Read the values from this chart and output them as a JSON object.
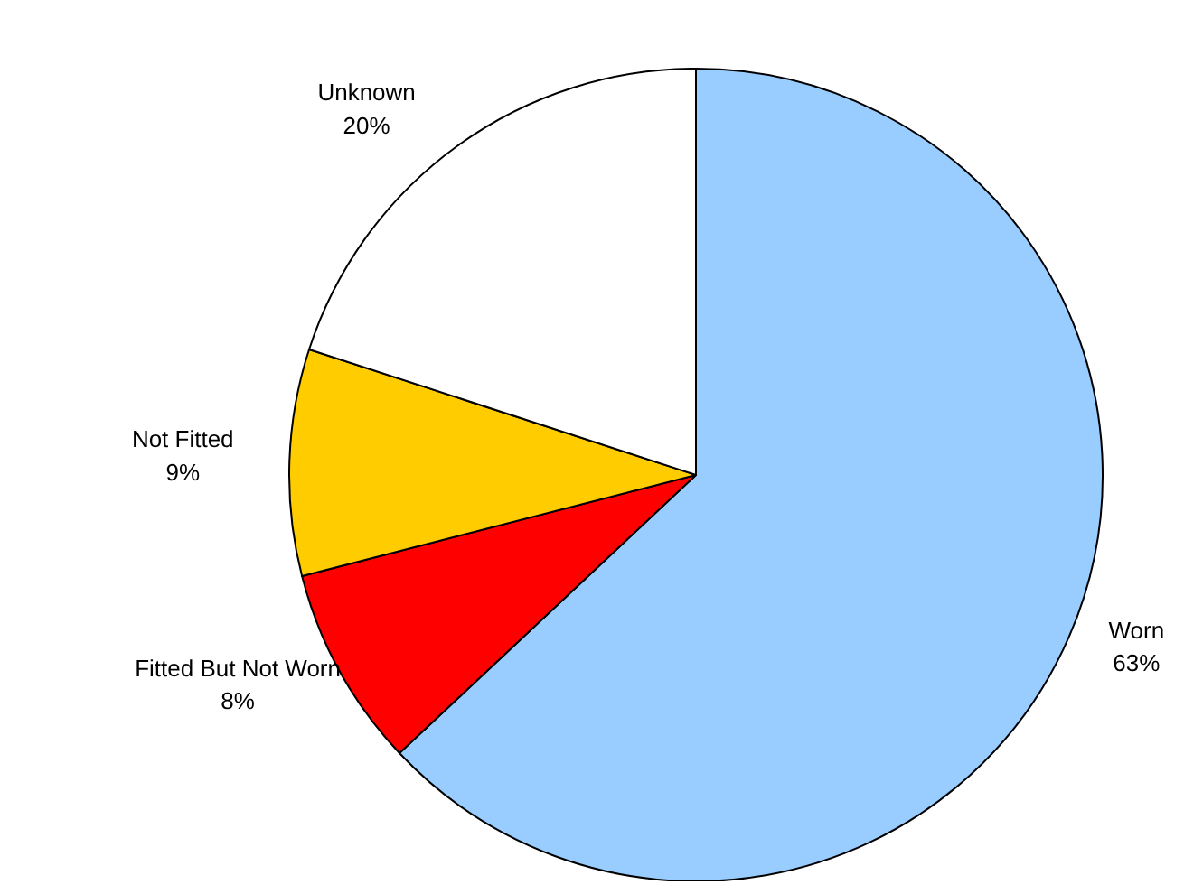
{
  "chart_data": {
    "type": "pie",
    "categories": [
      "Worn",
      "Fitted But Not Worn",
      "Not Fitted",
      "Unknown"
    ],
    "values": [
      63,
      8,
      9,
      20
    ],
    "colors": [
      "#99ccff",
      "#ff0000",
      "#ffcc00",
      "#ffffff"
    ],
    "value_labels": [
      "63%",
      "8%",
      "9%",
      "20%"
    ]
  }
}
